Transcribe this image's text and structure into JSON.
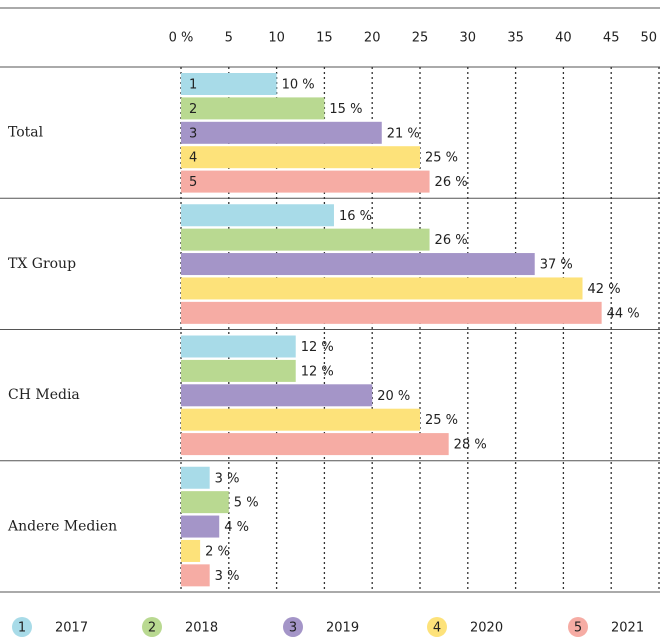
{
  "chart_data": {
    "type": "bar",
    "orientation": "horizontal",
    "grid": true,
    "legend": "bottom",
    "categories": [
      "Total",
      "TX Group",
      "CH Media",
      "Andere Medien"
    ],
    "series": [
      {
        "name": "2017",
        "marker": "1",
        "color": "#a8dbe8",
        "values": [
          10,
          16,
          12,
          3
        ],
        "value_labels": [
          "10 %",
          "16 %",
          "12 %",
          "3 %"
        ]
      },
      {
        "name": "2018",
        "marker": "2",
        "color": "#b9d991",
        "values": [
          15,
          26,
          12,
          5
        ],
        "value_labels": [
          "15 %",
          "26 %",
          "12 %",
          "5 %"
        ]
      },
      {
        "name": "2019",
        "marker": "3",
        "color": "#a495c8",
        "values": [
          21,
          37,
          20,
          4
        ],
        "value_labels": [
          "21 %",
          "37 %",
          "20 %",
          "4 %"
        ]
      },
      {
        "name": "2020",
        "marker": "4",
        "color": "#fde27a",
        "values": [
          25,
          42,
          25,
          2
        ],
        "value_labels": [
          "25 %",
          "42 %",
          "25 %",
          "2 %"
        ]
      },
      {
        "name": "2021",
        "marker": "5",
        "color": "#f6aca4",
        "values": [
          26,
          44,
          28,
          3
        ],
        "value_labels": [
          "26 %",
          "44 %",
          "28 %",
          "3 %"
        ]
      }
    ],
    "xlim": [
      0,
      50
    ],
    "xticks": [
      {
        "value": 0,
        "label": "0 %"
      },
      5,
      10,
      15,
      20,
      25,
      30,
      35,
      40,
      45,
      50
    ]
  }
}
